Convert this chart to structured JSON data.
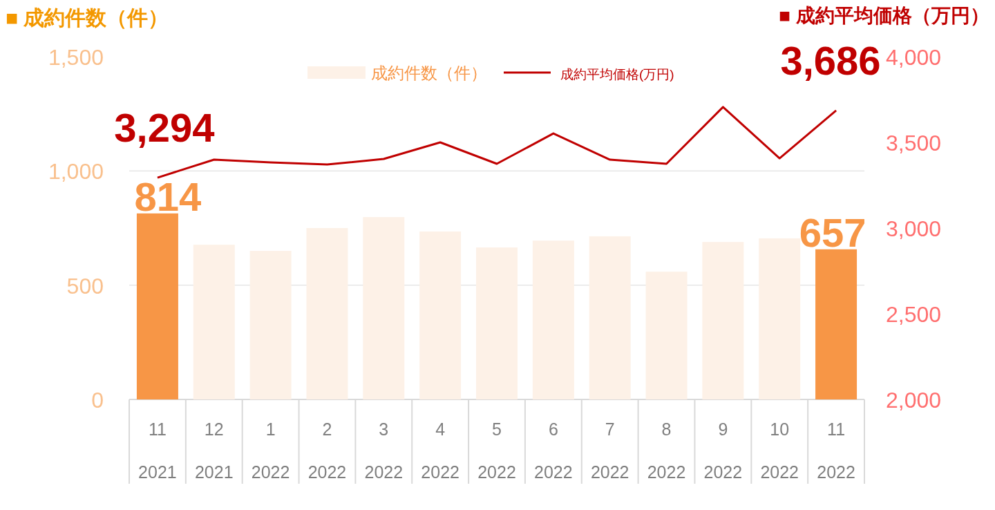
{
  "chart_data": {
    "type": "bar",
    "ylabel": "■ 成約件数（件）",
    "y2label": "■ 成約平均価格（万円）",
    "categories": [
      "11\n2021",
      "12\n2021",
      "1\n2022",
      "2\n2022",
      "3\n2022",
      "4\n2022",
      "5\n2022",
      "6\n2022",
      "7\n2022",
      "8\n2022",
      "9\n2022",
      "10\n2022",
      "11\n2022"
    ],
    "ylim": [
      0,
      1500
    ],
    "yticks": [
      0,
      500,
      {
        "value": 1000,
        "label": "1,000"
      },
      {
        "value": 1500,
        "label": "1,500"
      }
    ],
    "y2lim": [
      2000,
      4000
    ],
    "y2ticks": [
      {
        "value": 2000,
        "label": "2,000"
      },
      {
        "value": 2500,
        "label": "2,500"
      },
      {
        "value": 3000,
        "label": "3,000"
      },
      {
        "value": 3500,
        "label": "3,500"
      },
      {
        "value": 4000,
        "label": "4,000"
      }
    ],
    "grid": "y",
    "legend": "top",
    "series": [
      {
        "name": "成約件数（件）",
        "color": "#fdf1e7",
        "colors": [
          "#f79646",
          "#fdf1e7",
          "#fdf1e7",
          "#fdf1e7",
          "#fdf1e7",
          "#fdf1e7",
          "#fdf1e7",
          "#fdf1e7",
          "#fdf1e7",
          "#fdf1e7",
          "#fdf1e7",
          "#fdf1e7",
          "#f79646"
        ],
        "values": [
          814,
          677,
          650,
          750,
          798,
          735,
          665,
          695,
          714,
          559,
          689,
          705,
          657
        ],
        "value_labels": [
          "814",
          null,
          null,
          null,
          null,
          null,
          null,
          null,
          null,
          null,
          null,
          null,
          "657"
        ]
      },
      {
        "name": "成約平均価格(万円)",
        "type": "line",
        "axis": "y2",
        "color": "#c00000",
        "values": [
          3294,
          3399,
          3383,
          3371,
          3403,
          3500,
          3375,
          3552,
          3399,
          3375,
          3706,
          3407,
          3686
        ],
        "value_labels": [
          "3,294",
          null,
          null,
          null,
          null,
          null,
          null,
          null,
          null,
          null,
          null,
          null,
          "3,686"
        ]
      }
    ]
  }
}
